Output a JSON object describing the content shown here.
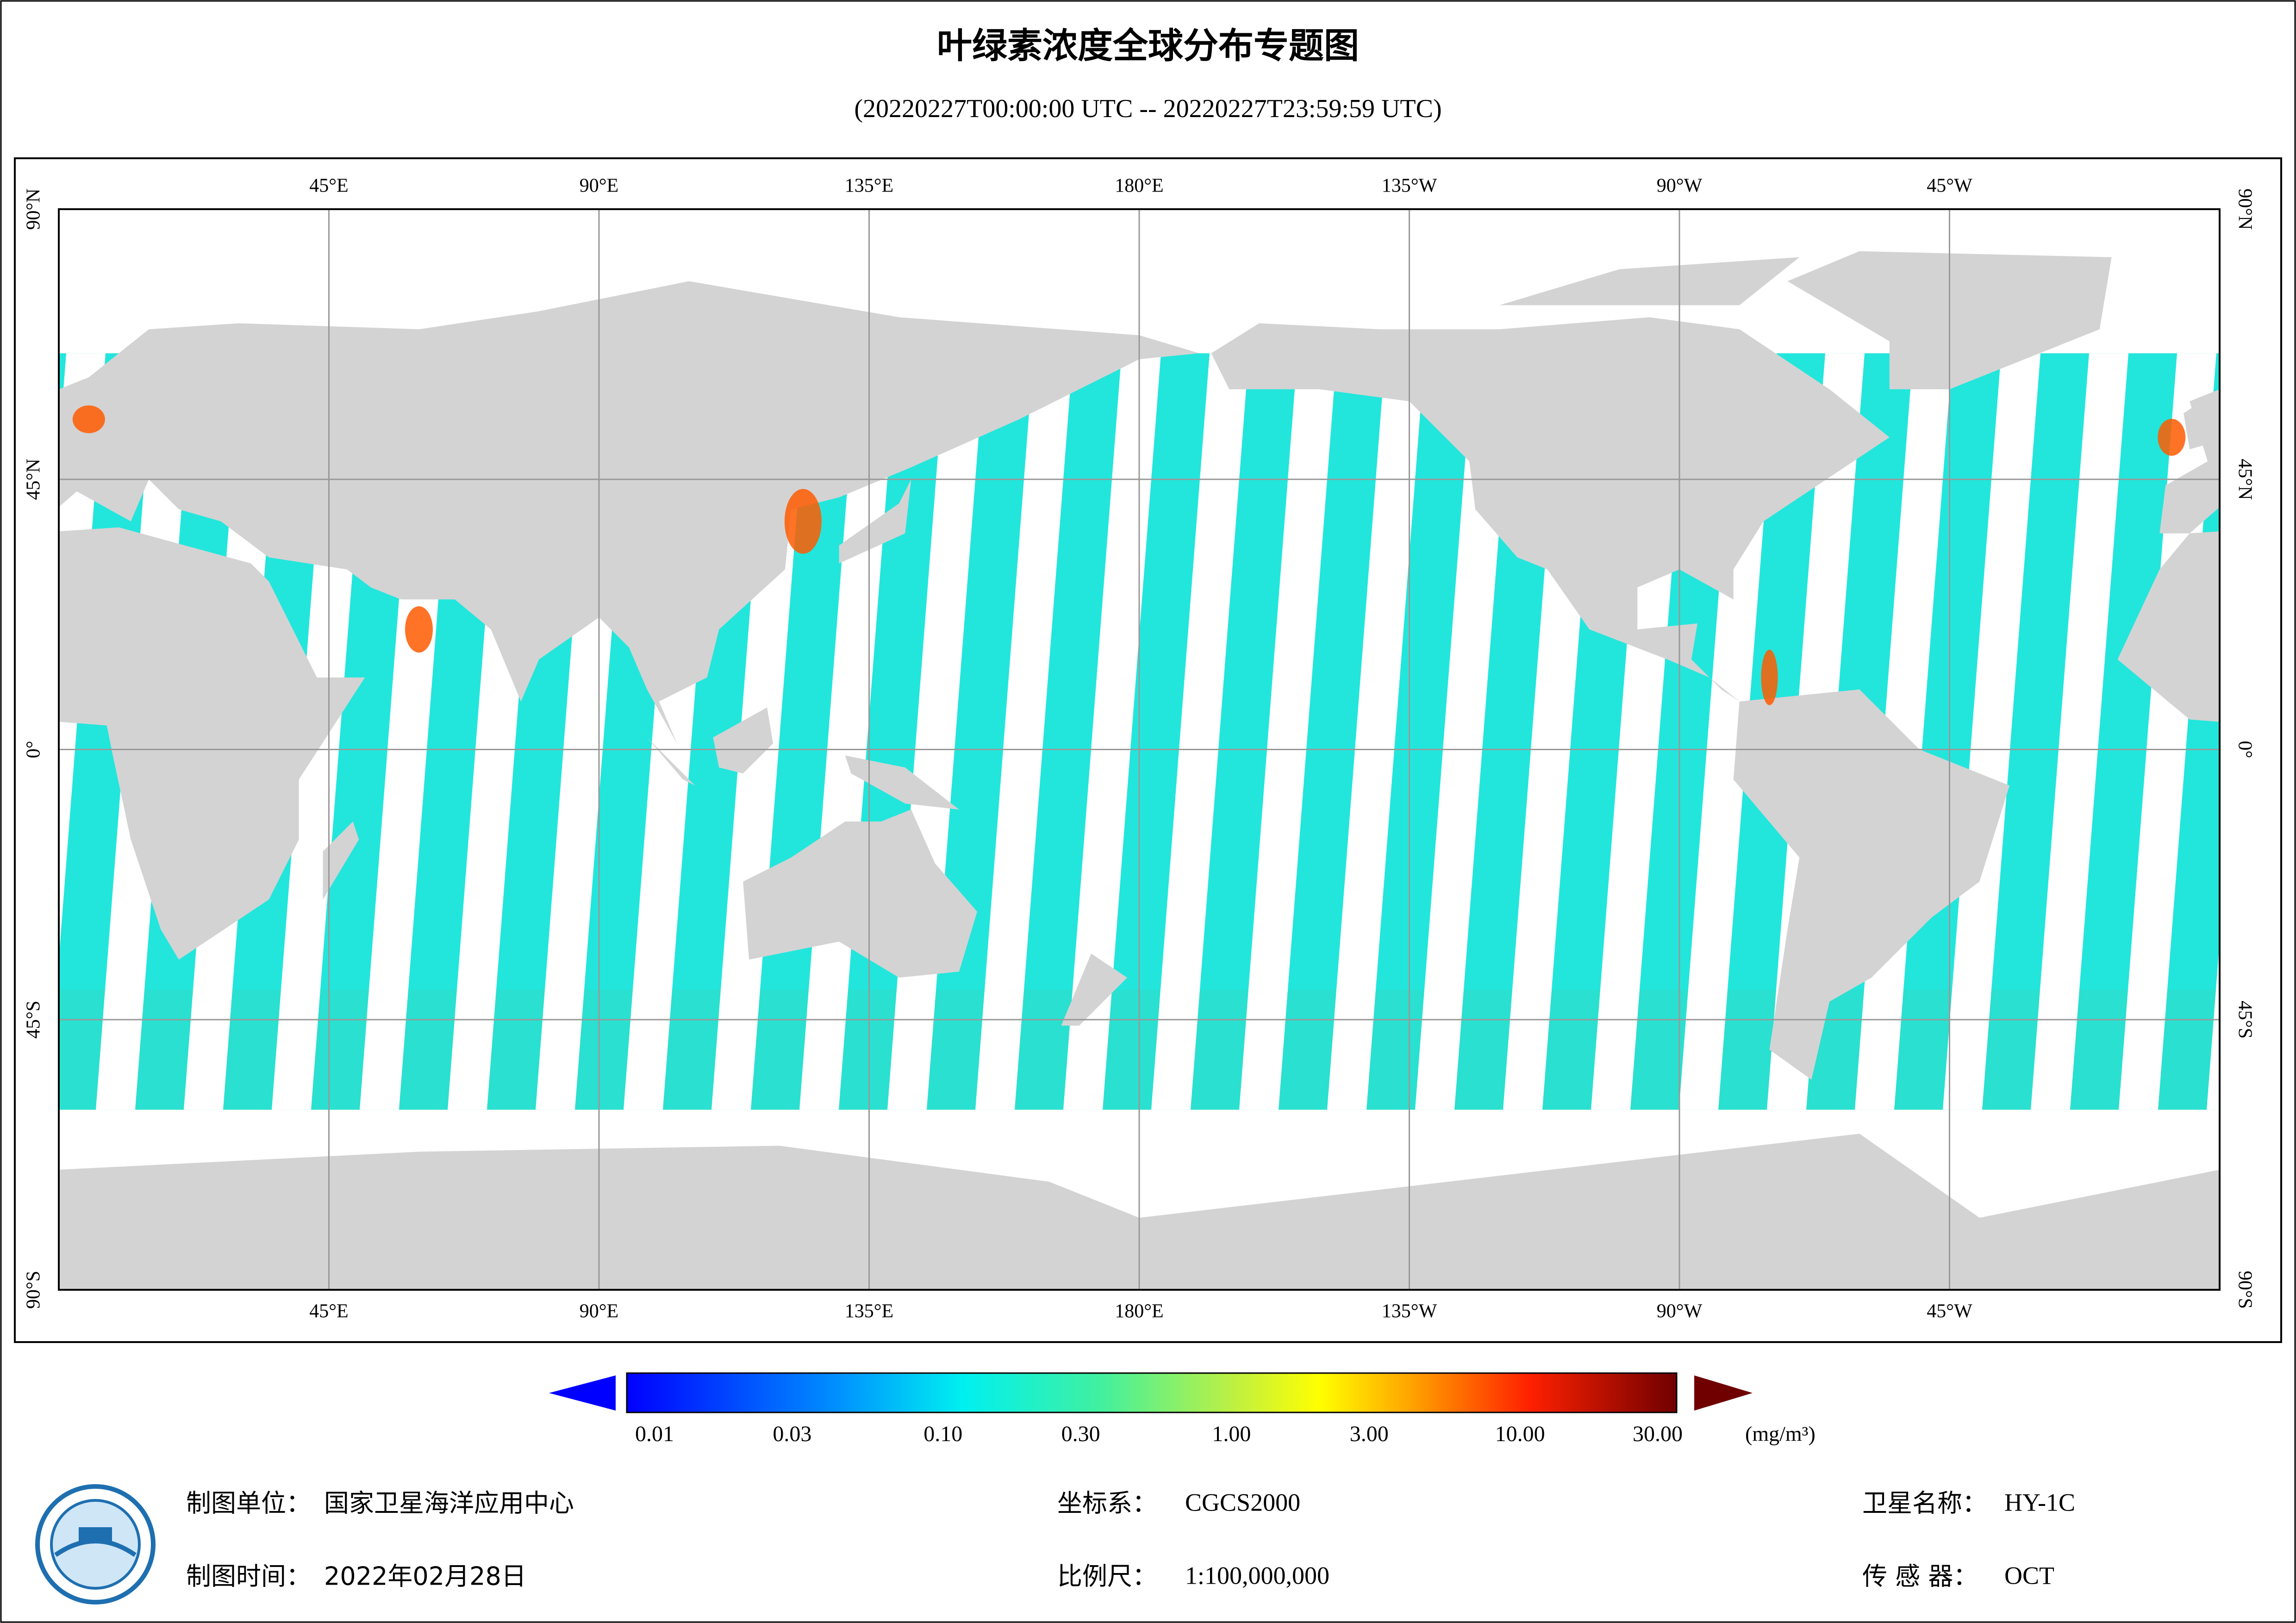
{
  "title": "叶绿素浓度全球分布专题图",
  "subtitle": "(20220227T00:00:00 UTC -- 20220227T23:59:59 UTC)",
  "map": {
    "lon_ticks": [
      {
        "value": 45,
        "label": "45°E"
      },
      {
        "value": 90,
        "label": "90°E"
      },
      {
        "value": 135,
        "label": "135°E"
      },
      {
        "value": 180,
        "label": "180°E"
      },
      {
        "value": 225,
        "label": "135°W"
      },
      {
        "value": 270,
        "label": "90°W"
      },
      {
        "value": 315,
        "label": "45°W"
      }
    ],
    "lat_ticks": [
      {
        "value": 90,
        "label": "90°N"
      },
      {
        "value": 45,
        "label": "45°N"
      },
      {
        "value": 0,
        "label": "0°"
      },
      {
        "value": -45,
        "label": "45°S"
      },
      {
        "value": -90,
        "label": "90°S"
      }
    ]
  },
  "colorbar": {
    "ticks": [
      {
        "value": 0.01,
        "label": "0.01"
      },
      {
        "value": 0.03,
        "label": "0.03"
      },
      {
        "value": 0.1,
        "label": "0.10"
      },
      {
        "value": 0.3,
        "label": "0.30"
      },
      {
        "value": 1,
        "label": "1.00"
      },
      {
        "value": 3,
        "label": "3.00"
      },
      {
        "value": 10,
        "label": "10.00"
      },
      {
        "value": 30,
        "label": "30.00"
      }
    ],
    "unit": "(mg/m³)"
  },
  "footer": {
    "unit_label": "制图单位：",
    "unit": "国家卫星海洋应用中心",
    "time_label": "制图时间：",
    "time": "2022年02月28日",
    "crs_label": "坐标系：",
    "crs": "CGCS2000",
    "scale_label": "比例尺：",
    "scale": "1:100,000,000",
    "satellite_label": "卫星名称：",
    "satellite": "HY-1C",
    "sensor_label": "传 感 器：",
    "sensor": "OCT"
  }
}
